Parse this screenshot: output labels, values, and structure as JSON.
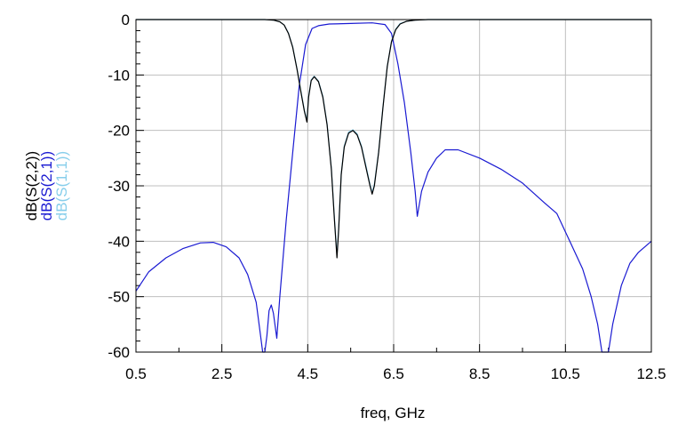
{
  "chart_data": {
    "type": "line",
    "xlabel": "freq, GHz",
    "ylabel_parts": [
      "dB(S(2,2))",
      "dB(S(2,1))",
      "dB(S(1,1))"
    ],
    "xlim": [
      0.5,
      12.5
    ],
    "ylim": [
      -60,
      0
    ],
    "x_ticks": [
      0.5,
      2.5,
      4.5,
      6.5,
      8.5,
      10.5,
      12.5
    ],
    "x_tick_labels": [
      "0.5",
      "2.5",
      "4.5",
      "6.5",
      "8.5",
      "10.5",
      "12.5"
    ],
    "y_ticks": [
      -60,
      -50,
      -40,
      -30,
      -20,
      -10,
      0
    ],
    "y_tick_labels": [
      "-60",
      "-50",
      "-40",
      "-30",
      "-20",
      "-10",
      "0"
    ],
    "grid": true,
    "colors": {
      "s22": "#000000",
      "s21": "#1a1ad2",
      "s11": "#87ceeb",
      "grid": "#bfbfbf"
    },
    "series": [
      {
        "name": "dB(S(2,1))",
        "x": [
          0.5,
          0.8,
          1.2,
          1.6,
          2.0,
          2.3,
          2.6,
          2.9,
          3.1,
          3.3,
          3.4,
          3.45,
          3.5,
          3.55,
          3.6,
          3.65,
          3.7,
          3.78,
          3.85,
          4.0,
          4.15,
          4.3,
          4.45,
          4.6,
          4.75,
          5.0,
          5.5,
          6.0,
          6.3,
          6.45,
          6.6,
          6.75,
          6.9,
          7.0,
          7.05,
          7.15,
          7.3,
          7.5,
          7.7,
          8.0,
          8.5,
          9.0,
          9.5,
          10.0,
          10.3,
          10.6,
          10.9,
          11.1,
          11.25,
          11.35,
          11.42,
          11.5,
          11.6,
          11.8,
          12.0,
          12.2,
          12.5
        ],
        "values": [
          -49,
          -45.5,
          -43,
          -41.3,
          -40.3,
          -40.2,
          -41,
          -43,
          -46,
          -51,
          -57,
          -60,
          -60,
          -57,
          -52.5,
          -51.5,
          -53,
          -57.5,
          -50,
          -36,
          -24,
          -12,
          -4.5,
          -1.6,
          -1.1,
          -0.8,
          -0.7,
          -0.6,
          -0.9,
          -2.5,
          -8,
          -15,
          -24,
          -31,
          -35.5,
          -31,
          -27.5,
          -25,
          -23.5,
          -23.5,
          -25,
          -27,
          -29.5,
          -33,
          -35,
          -40,
          -45,
          -50,
          -55,
          -60,
          -60,
          -60,
          -55,
          -48,
          -44,
          -42,
          -40
        ]
      },
      {
        "name": "dB(S(2,2))",
        "x": [
          0.5,
          1.5,
          2.5,
          3.5,
          3.7,
          3.85,
          3.95,
          4.05,
          4.15,
          4.25,
          4.35,
          4.42,
          4.48,
          4.52,
          4.58,
          4.65,
          4.75,
          4.85,
          4.95,
          5.05,
          5.12,
          5.18,
          5.22,
          5.28,
          5.35,
          5.45,
          5.55,
          5.65,
          5.75,
          5.85,
          5.95,
          6.0,
          6.05,
          6.15,
          6.25,
          6.35,
          6.45,
          6.55,
          6.65,
          6.8,
          7.0,
          7.3,
          8.5,
          10.5,
          11.5,
          12.5
        ],
        "values": [
          0,
          0,
          0,
          0,
          -0.1,
          -0.4,
          -1,
          -2.5,
          -5,
          -9,
          -13.5,
          -16.5,
          -18.5,
          -14,
          -11,
          -10.3,
          -11.2,
          -14,
          -19,
          -27,
          -36,
          -43,
          -38,
          -28,
          -23,
          -20.5,
          -20,
          -20.8,
          -23,
          -26.5,
          -30,
          -31.5,
          -30,
          -24,
          -16,
          -8.5,
          -4,
          -1.8,
          -0.8,
          -0.3,
          -0.1,
          0,
          0,
          0,
          0,
          0
        ]
      },
      {
        "name": "dB(S(1,1))",
        "x": [
          0.5,
          1.5,
          2.5,
          3.5,
          3.7,
          3.85,
          3.95,
          4.05,
          4.15,
          4.25,
          4.35,
          4.42,
          4.48,
          4.52,
          4.58,
          4.65,
          4.75,
          4.85,
          4.95,
          5.05,
          5.12,
          5.18,
          5.22,
          5.28,
          5.35,
          5.45,
          5.55,
          5.65,
          5.75,
          5.85,
          5.95,
          6.0,
          6.05,
          6.15,
          6.25,
          6.35,
          6.45,
          6.55,
          6.65,
          6.8,
          7.0,
          7.3,
          8.5,
          10.5,
          11.5,
          12.5
        ],
        "values": [
          0,
          0,
          0,
          0,
          -0.1,
          -0.4,
          -1,
          -2.4,
          -4.9,
          -8.9,
          -13.3,
          -16.3,
          -18.2,
          -13.8,
          -10.9,
          -10.2,
          -11.1,
          -13.8,
          -18.8,
          -26.8,
          -35.6,
          -42.5,
          -37.6,
          -27.8,
          -22.8,
          -20.3,
          -19.9,
          -20.6,
          -22.8,
          -26.2,
          -29.7,
          -31.2,
          -29.7,
          -23.8,
          -15.8,
          -8.4,
          -3.9,
          -1.7,
          -0.7,
          -0.3,
          -0.1,
          0,
          0,
          0,
          0,
          0
        ]
      }
    ]
  }
}
